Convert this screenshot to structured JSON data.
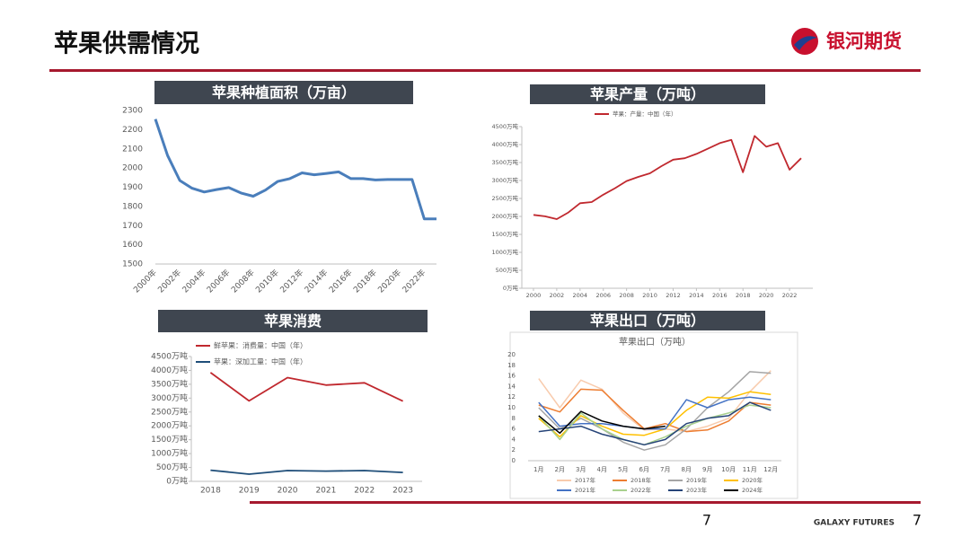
{
  "header": {
    "title": "苹果供需情况",
    "logo": "银河期货"
  },
  "footer": {
    "page_center": "7",
    "brand": "GALAXY FUTURES",
    "page_right": "7"
  },
  "chart_data": [
    {
      "type": "line",
      "panel_title": "苹果种植面积（万亩）",
      "categories": [
        "2000年",
        null,
        "2002年",
        null,
        "2004年",
        null,
        "2006年",
        null,
        "2008年",
        null,
        "2010年",
        null,
        "2012年",
        null,
        "2014年",
        null,
        "2016年",
        null,
        "2018年",
        null,
        "2020年",
        null,
        "2022年",
        null
      ],
      "series": [
        {
          "name": "苹果种植面积",
          "color": "#4a7ebb",
          "values": [
            2255,
            2065,
            1935,
            1895,
            1875,
            1888,
            1898,
            1870,
            1853,
            1885,
            1930,
            1945,
            1975,
            1965,
            1972,
            1980,
            1945,
            1945,
            1938,
            1940,
            1940,
            1940,
            1735,
            1735
          ]
        }
      ],
      "ylim": [
        1500,
        2300
      ],
      "yticks": [
        1500,
        1600,
        1700,
        1800,
        1900,
        2000,
        2100,
        2200,
        2300
      ],
      "legend": false
    },
    {
      "type": "line",
      "panel_title": "苹果产量（万吨）",
      "x": [
        2000,
        2001,
        2002,
        2003,
        2004,
        2005,
        2006,
        2007,
        2008,
        2009,
        2010,
        2011,
        2012,
        2013,
        2014,
        2015,
        2016,
        2017,
        2018,
        2019,
        2020,
        2021,
        2022,
        2023
      ],
      "series": [
        {
          "name": "苹果：产量：中国（年）",
          "color": "#c0282e",
          "values": [
            2043,
            2002,
            1924,
            2110,
            2367,
            2401,
            2606,
            2786,
            2985,
            3100,
            3200,
            3400,
            3580,
            3620,
            3740,
            3890,
            4040,
            4130,
            3230,
            4240,
            3940,
            4040,
            3300,
            3620
          ]
        }
      ],
      "xlim": [
        1999,
        2024
      ],
      "xticks": [
        2000,
        2002,
        2004,
        2006,
        2008,
        2010,
        2012,
        2014,
        2016,
        2018,
        2020,
        2022
      ],
      "ylim": [
        0,
        4500
      ],
      "yticks": [
        {
          "value": 0,
          "label": "0万吨"
        },
        {
          "value": 500,
          "label": "500万吨"
        },
        {
          "value": 1000,
          "label": "1000万吨"
        },
        {
          "value": 1500,
          "label": "1500万吨"
        },
        {
          "value": 2000,
          "label": "2000万吨"
        },
        {
          "value": 2500,
          "label": "2500万吨"
        },
        {
          "value": 3000,
          "label": "3000万吨"
        },
        {
          "value": 3500,
          "label": "3500万吨"
        },
        {
          "value": 4000,
          "label": "4000万吨"
        },
        {
          "value": 4500,
          "label": "4500万吨"
        }
      ],
      "legend": true
    },
    {
      "type": "line",
      "panel_title": "苹果消费",
      "categories": [
        "2018",
        "2019",
        "2020",
        "2021",
        "2022",
        "2023"
      ],
      "series": [
        {
          "name": "鲜苹果：消费量：中国（年）",
          "color": "#c0282e",
          "values": [
            3920,
            2900,
            3740,
            3470,
            3550,
            2890
          ]
        },
        {
          "name": "苹果：深加工量：中国（年）",
          "color": "#1f4e79",
          "values": [
            400,
            260,
            390,
            370,
            390,
            320
          ]
        }
      ],
      "ylim": [
        0,
        4500
      ],
      "yticks": [
        {
          "value": 0,
          "label": "0万吨"
        },
        {
          "value": 500,
          "label": "500万吨"
        },
        {
          "value": 1000,
          "label": "1000万吨"
        },
        {
          "value": 1500,
          "label": "1500万吨"
        },
        {
          "value": 2000,
          "label": "2000万吨"
        },
        {
          "value": 2500,
          "label": "2500万吨"
        },
        {
          "value": 3000,
          "label": "3000万吨"
        },
        {
          "value": 3500,
          "label": "3500万吨"
        },
        {
          "value": 4000,
          "label": "4000万吨"
        },
        {
          "value": 4500,
          "label": "4500万吨"
        }
      ],
      "legend": true
    },
    {
      "type": "line",
      "panel_title": "苹果出口（万吨）",
      "title": "苹果出口（万吨）",
      "categories": [
        "1月",
        "2月",
        "3月",
        "4月",
        "5月",
        "6月",
        "7月",
        "8月",
        "9月",
        "10月",
        "11月",
        "12月"
      ],
      "series": [
        {
          "name": "2017年",
          "color": "#f8cbad",
          "values": [
            15.5,
            10,
            15.2,
            13.5,
            9,
            5.8,
            6,
            5.5,
            6.5,
            8,
            13,
            17
          ]
        },
        {
          "name": "2018年",
          "color": "#ed7d31",
          "values": [
            10.5,
            9.2,
            13.5,
            13.3,
            9.5,
            6,
            7,
            5.5,
            5.8,
            7.5,
            11,
            10.5
          ]
        },
        {
          "name": "2019年",
          "color": "#a5a5a5",
          "values": [
            10,
            6,
            8,
            6,
            3.5,
            2,
            3,
            6,
            10,
            13,
            16.8,
            16.5
          ]
        },
        {
          "name": "2020年",
          "color": "#ffc000",
          "values": [
            8,
            4.5,
            8.5,
            6.5,
            5,
            4.8,
            6,
            9.5,
            12,
            11.8,
            13,
            12.5
          ]
        },
        {
          "name": "2021年",
          "color": "#4472c4",
          "values": [
            11,
            6.5,
            7,
            7,
            6.5,
            6,
            6,
            11.5,
            10,
            11.5,
            12,
            11.5
          ]
        },
        {
          "name": "2022年",
          "color": "#a9d18e",
          "values": [
            8.5,
            4,
            9,
            6,
            4,
            3,
            4.5,
            6.5,
            8,
            9,
            10.5,
            10
          ]
        },
        {
          "name": "2023年",
          "color": "#264478",
          "values": [
            5.5,
            6,
            6.5,
            5,
            4,
            3,
            4,
            7,
            8,
            8.5,
            11,
            9.5
          ]
        },
        {
          "name": "2024年",
          "color": "#000000",
          "values": [
            8.5,
            5.2,
            9.3,
            7.5,
            6.5,
            6,
            6.5,
            null,
            null,
            null,
            null,
            null
          ]
        }
      ],
      "ylim": [
        0,
        20
      ],
      "yticks": [
        0,
        2,
        4,
        6,
        8,
        10,
        12,
        14,
        16,
        18,
        20
      ],
      "legend": true
    }
  ]
}
